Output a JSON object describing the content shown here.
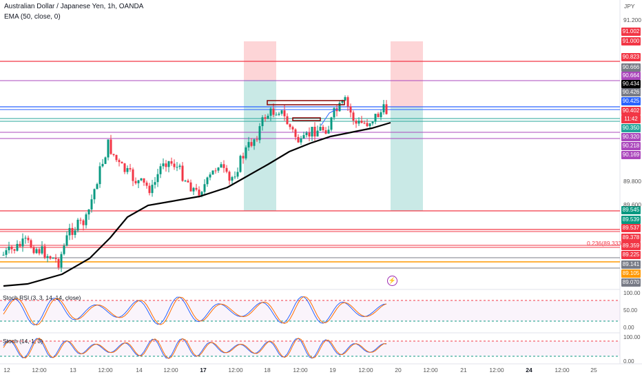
{
  "header": {
    "symbol": "Australian Dollar / Japanese Yen, 1h, OANDA",
    "indicator": "EMA (50, close, 0)",
    "currency": "JPY"
  },
  "colors": {
    "background": "#ffffff",
    "up_candle": "#089981",
    "down_candle": "#f23645",
    "ema": "#000000",
    "stoch_k": "#2962ff",
    "stoch_d": "#ff6d00",
    "red_line": "#f23645",
    "purple_line": "#ab47bc",
    "blue_line": "#2962ff",
    "orange_line": "#ff9800",
    "gray_line": "#787b86",
    "profit_zone": "#b2dfdb",
    "loss_zone": "#fccbcd"
  },
  "price_axis": {
    "tick_labels": [
      "91.200",
      "89.800",
      "89.600"
    ],
    "tags": [
      {
        "value": "91.002",
        "color": "#f23645"
      },
      {
        "value": "91.000",
        "color": "#f23645"
      },
      {
        "value": "90.823",
        "color": "#f23645"
      },
      {
        "value": "90.666",
        "color": "#787b86"
      },
      {
        "value": "90.664",
        "color": "#ab47bc"
      },
      {
        "value": "90.434",
        "color": "#000000"
      },
      {
        "value": "90.426",
        "color": "#787b86"
      },
      {
        "value": "90.425",
        "color": "#2962ff"
      },
      {
        "value": "90.402",
        "color": "#f23645"
      },
      {
        "value": "11:42",
        "color": "#f23645"
      },
      {
        "value": "90.350",
        "color": "#26a69a"
      },
      {
        "value": "90.320",
        "color": "#ab47bc"
      },
      {
        "value": "90.218",
        "color": "#ab47bc"
      },
      {
        "value": "90.169",
        "color": "#ab47bc"
      },
      {
        "value": "89.545",
        "color": "#089981"
      },
      {
        "value": "89.539",
        "color": "#089981"
      },
      {
        "value": "89.537",
        "color": "#f23645"
      },
      {
        "value": "89.378",
        "color": "#f23645"
      },
      {
        "value": "89.359",
        "color": "#f23645"
      },
      {
        "value": "89.225",
        "color": "#f23645"
      },
      {
        "value": "89.141",
        "color": "#787b86"
      },
      {
        "value": "89.105",
        "color": "#ff9800"
      },
      {
        "value": "89.070",
        "color": "#787b86"
      }
    ]
  },
  "fib_label": "0.236(89.333)",
  "time_axis": {
    "labels": [
      {
        "text": "12",
        "bold": false
      },
      {
        "text": "12:00",
        "bold": false
      },
      {
        "text": "13",
        "bold": false
      },
      {
        "text": "12:00",
        "bold": false
      },
      {
        "text": "14",
        "bold": false
      },
      {
        "text": "12:00",
        "bold": false
      },
      {
        "text": "17",
        "bold": true
      },
      {
        "text": "12:00",
        "bold": false
      },
      {
        "text": "18",
        "bold": false
      },
      {
        "text": "12:00",
        "bold": false
      },
      {
        "text": "19",
        "bold": false
      },
      {
        "text": "12:00",
        "bold": false
      },
      {
        "text": "20",
        "bold": false
      },
      {
        "text": "12:00",
        "bold": false
      },
      {
        "text": "21",
        "bold": false
      },
      {
        "text": "12:00",
        "bold": false
      },
      {
        "text": "24",
        "bold": true
      },
      {
        "text": "12:00",
        "bold": false
      },
      {
        "text": "25",
        "bold": false
      }
    ]
  },
  "oscillators": {
    "stoch_rsi": {
      "label": "Stoch RSI (3, 3, 14, 14, close)",
      "scale": [
        "100.00",
        "50.00",
        "0.00"
      ]
    },
    "stoch": {
      "label": "Stoch (14, 1, 3)",
      "scale": [
        "100.00",
        "0.00"
      ]
    }
  },
  "chart_data": {
    "type": "candlestick",
    "instrument": "AUD/JPY",
    "timeframe": "1h",
    "y_unit": "JPY",
    "ema_period": 50,
    "horizontal_levels": [
      90.823,
      90.664,
      90.425,
      90.35,
      90.32,
      90.169,
      89.545,
      89.537,
      89.378,
      89.359,
      89.141,
      89.105,
      89.07
    ],
    "last_price": 90.402,
    "ema_last": 90.35
  }
}
